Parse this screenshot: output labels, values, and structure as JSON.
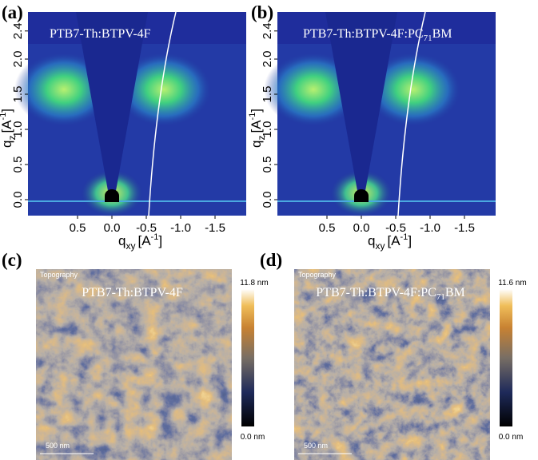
{
  "gixs": [
    {
      "label": "(a)",
      "title": {
        "main": "PTB7-Th:BTPV-4F"
      },
      "x_label": {
        "q": "q",
        "sub": "xy",
        "unit": "[A",
        "sup": "-1",
        "close": "]"
      },
      "y_label": {
        "q": "q",
        "sub": "z",
        "unit": "[A",
        "sup": "-1",
        "close": "]"
      },
      "xticks": [
        "0.5",
        "0.0",
        "-0.5",
        "-1.0",
        "-1.5"
      ],
      "yticks": [
        "0.0",
        "0.5",
        "1.0",
        "1.5",
        "2.0",
        "2.4"
      ]
    },
    {
      "label": "(b)",
      "title": {
        "main": "PTB7-Th:BTPV-4F:PC",
        "sub": "71",
        "end": "BM"
      },
      "x_label": {
        "q": "q",
        "sub": "xy",
        "unit": "[A",
        "sup": "-1",
        "close": "]"
      },
      "y_label": {
        "q": "q",
        "sub": "z",
        "unit": "[A",
        "sup": "-1",
        "close": "]"
      },
      "xticks": [
        "0.5",
        "0.0",
        "-0.5",
        "-1.0",
        "-1.5"
      ],
      "yticks": [
        "0.0",
        "0.5",
        "1.0",
        "1.5",
        "2.0",
        "2.4"
      ]
    }
  ],
  "afm": [
    {
      "label": "(c)",
      "mode": "Topography",
      "title": {
        "main": "PTB7-Th:BTPV-4F"
      },
      "scale_bar": "500 nm",
      "colorbar_max": "11.8 nm",
      "colorbar_min": "0.0 nm"
    },
    {
      "label": "(d)",
      "mode": "Topography",
      "title": {
        "main": "PTB7-Th:BTPV-4F:PC",
        "sub": "71",
        "end": "BM"
      },
      "scale_bar": "500 nm",
      "colorbar_max": "11.6 nm",
      "colorbar_min": "0.0 nm"
    }
  ]
}
